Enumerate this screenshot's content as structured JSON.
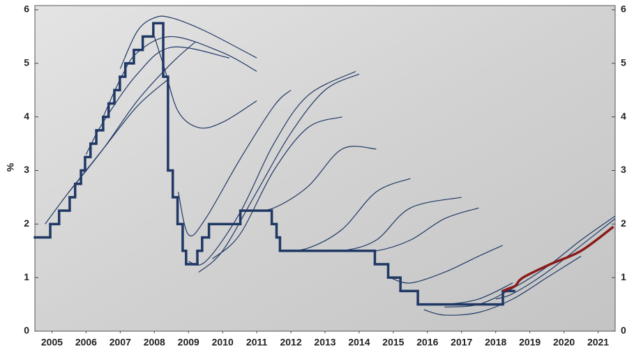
{
  "chart_data": {
    "type": "line",
    "ylabel": "%",
    "xlim": [
      2005,
      2022
    ],
    "ylim": [
      0,
      6
    ],
    "yticks": [
      0,
      1,
      2,
      3,
      4,
      5,
      6
    ],
    "xticks": [
      {
        "value": 2005.5,
        "label": "2005"
      },
      {
        "value": 2006.5,
        "label": "2006"
      },
      {
        "value": 2007.5,
        "label": "2007"
      },
      {
        "value": 2008.5,
        "label": "2008"
      },
      {
        "value": 2009.5,
        "label": "2009"
      },
      {
        "value": 2010.5,
        "label": "2010"
      },
      {
        "value": 2011.5,
        "label": "2011"
      },
      {
        "value": 2012.5,
        "label": "2012"
      },
      {
        "value": 2013.5,
        "label": "2013"
      },
      {
        "value": 2014.5,
        "label": "2014"
      },
      {
        "value": 2015.5,
        "label": "2015"
      },
      {
        "value": 2016.5,
        "label": "2016"
      },
      {
        "value": 2017.5,
        "label": "2017"
      },
      {
        "value": 2018.5,
        "label": "2018"
      },
      {
        "value": 2019.5,
        "label": "2019"
      },
      {
        "value": 2020.5,
        "label": "2020"
      },
      {
        "value": 2021.5,
        "label": "2021"
      }
    ],
    "series": [
      {
        "color": "#1f3864",
        "x": [
          2005.3,
          2006,
          2007,
          2008,
          2008.9
        ],
        "values": [
          2.0,
          2.6,
          3.4,
          4.2,
          4.7
        ]
      },
      {
        "color": "#1f3864",
        "x": [
          2006.0,
          2007,
          2008,
          2009,
          2009.7
        ],
        "values": [
          2.6,
          3.4,
          4.3,
          5.0,
          5.4
        ]
      },
      {
        "color": "#1f3864",
        "x": [
          2006.5,
          2007,
          2008,
          2009,
          2010.7
        ],
        "values": [
          3.3,
          3.9,
          4.8,
          5.3,
          5.1
        ]
      },
      {
        "color": "#1f3864",
        "x": [
          2007.0,
          2007.5,
          2008,
          2009,
          2010.5,
          2011.5
        ],
        "values": [
          4.0,
          4.7,
          5.2,
          5.5,
          5.2,
          4.85
        ]
      },
      {
        "color": "#1f3864",
        "x": [
          2007.5,
          2008,
          2008.5,
          2009,
          2010,
          2011.5
        ],
        "values": [
          4.9,
          5.6,
          5.85,
          5.85,
          5.6,
          5.1
        ]
      },
      {
        "color": "#1f3864",
        "x": [
          2008.45,
          2008.8,
          2009.2,
          2009.8,
          2010.5,
          2011.5
        ],
        "values": [
          5.6,
          4.9,
          4.1,
          3.8,
          3.9,
          4.3
        ]
      },
      {
        "color": "#1f3864",
        "x": [
          2009.2,
          2009.5,
          2010,
          2011,
          2012,
          2012.5
        ],
        "values": [
          2.6,
          1.8,
          2.1,
          3.2,
          4.2,
          4.5
        ]
      },
      {
        "color": "#1f3864",
        "x": [
          2009.5,
          2010,
          2011,
          2012,
          2013,
          2014.4
        ],
        "values": [
          1.3,
          1.3,
          2.2,
          3.5,
          4.4,
          4.85
        ]
      },
      {
        "color": "#1f3864",
        "x": [
          2009.8,
          2010.5,
          2011.5,
          2012.5,
          2013.5,
          2014.5
        ],
        "values": [
          1.1,
          1.5,
          2.6,
          3.7,
          4.5,
          4.8
        ]
      },
      {
        "color": "#1f3864",
        "x": [
          2010.2,
          2011,
          2012,
          2013,
          2014
        ],
        "values": [
          1.35,
          1.8,
          3.0,
          3.8,
          4.0
        ]
      },
      {
        "color": "#1f3864",
        "x": [
          2011.3,
          2012,
          2013,
          2014,
          2015
        ],
        "values": [
          2.25,
          2.3,
          2.7,
          3.4,
          3.4
        ]
      },
      {
        "color": "#1f3864",
        "x": [
          2012.2,
          2013,
          2014,
          2015,
          2016
        ],
        "values": [
          1.5,
          1.55,
          1.9,
          2.6,
          2.85
        ]
      },
      {
        "color": "#1f3864",
        "x": [
          2013,
          2014,
          2015,
          2016,
          2017.5
        ],
        "values": [
          1.5,
          1.5,
          1.7,
          2.3,
          2.5
        ]
      },
      {
        "color": "#1f3864",
        "x": [
          2014.0,
          2015,
          2016,
          2017,
          2018
        ],
        "values": [
          1.5,
          1.5,
          1.7,
          2.1,
          2.3
        ]
      },
      {
        "color": "#1f3864",
        "x": [
          2015.4,
          2016,
          2017,
          2018,
          2018.7
        ],
        "values": [
          1.0,
          0.9,
          1.1,
          1.4,
          1.6
        ]
      },
      {
        "color": "#1f3864",
        "x": [
          2016.2,
          2017,
          2018,
          2019
        ],
        "values": [
          0.5,
          0.5,
          0.6,
          0.9
        ]
      },
      {
        "color": "#1f3864",
        "x": [
          2016.4,
          2017,
          2018,
          2019,
          2020,
          2021
        ],
        "values": [
          0.4,
          0.3,
          0.35,
          0.6,
          1.0,
          1.4
        ]
      },
      {
        "color": "#1f3864",
        "x": [
          2017,
          2018,
          2019,
          2020,
          2021,
          2022
        ],
        "values": [
          0.45,
          0.5,
          0.8,
          1.2,
          1.7,
          2.15
        ]
      },
      {
        "color": "#1f3864",
        "x": [
          2018.5,
          2019,
          2020,
          2021,
          2022
        ],
        "values": [
          0.6,
          0.7,
          1.1,
          1.6,
          2.1
        ]
      },
      {
        "color": "#1f3864",
        "step": true,
        "x": [
          2005.0,
          2005.45,
          2005.71,
          2006.02,
          2006.18,
          2006.35,
          2006.47,
          2006.63,
          2006.8,
          2007.0,
          2007.16,
          2007.33,
          2007.49,
          2007.65,
          2007.9,
          2008.16,
          2008.47,
          2008.76,
          2008.9,
          2009.04,
          2009.18,
          2009.33,
          2009.43,
          2009.76,
          2009.9,
          2010.1,
          2011.02,
          2011.94,
          2012.08,
          2012.18,
          2014.9,
          2014.96,
          2015.35,
          2015.71,
          2016.22,
          2018.71,
          2019.04
        ],
        "values": [
          1.75,
          2.0,
          2.25,
          2.5,
          2.75,
          3.0,
          3.25,
          3.5,
          3.75,
          4.0,
          4.25,
          4.5,
          4.75,
          5.0,
          5.25,
          5.5,
          5.75,
          4.75,
          3.0,
          2.5,
          2.0,
          1.5,
          1.25,
          1.5,
          1.75,
          2.0,
          2.25,
          2.0,
          1.75,
          1.5,
          1.5,
          1.25,
          1.0,
          0.75,
          0.5,
          0.75,
          0.75
        ]
      },
      {
        "color": "#8b1a1a",
        "x": [
          2018.71,
          2018.9,
          2019.08,
          2019.3,
          2020.1,
          2021.0,
          2021.95
        ],
        "values": [
          0.75,
          0.8,
          0.85,
          1.0,
          1.25,
          1.5,
          1.95
        ]
      }
    ]
  }
}
